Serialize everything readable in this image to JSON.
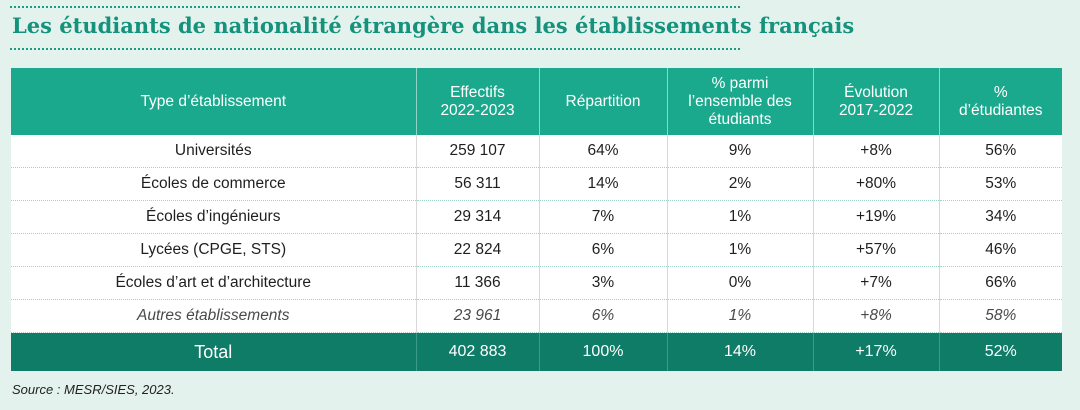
{
  "title": "Les étudiants de nationalité étrangère dans les établissements français",
  "table": {
    "headers": [
      [
        "Type d’établissement"
      ],
      [
        "Effectifs",
        "2022-2023"
      ],
      [
        "Répartition"
      ],
      [
        "% parmi",
        "l’ensemble des",
        "étudiants"
      ],
      [
        "Évolution",
        "2017-2022"
      ],
      [
        "%",
        "d’étudiantes"
      ]
    ],
    "rows": [
      [
        "Universités",
        "259 107",
        "64%",
        "9%",
        "+8%",
        "56%"
      ],
      [
        "Écoles de commerce",
        "56 311",
        "14%",
        "2%",
        "+80%",
        "53%"
      ],
      [
        "Écoles d’ingénieurs",
        "29 314",
        "7%",
        "1%",
        "+19%",
        "34%"
      ],
      [
        "Lycées (CPGE, STS)",
        "22 824",
        "6%",
        "1%",
        "+57%",
        "46%"
      ],
      [
        "Écoles d’art et d’architecture",
        "11 366",
        "3%",
        "0%",
        "+7%",
        "66%"
      ],
      [
        "Autres établissements",
        "23 961",
        "6%",
        "1%",
        "+8%",
        "58%"
      ]
    ],
    "total": [
      "Total",
      "402 883",
      "100%",
      "14%",
      "+17%",
      "52%"
    ]
  },
  "source": "Source : MESR/SIES, 2023."
}
